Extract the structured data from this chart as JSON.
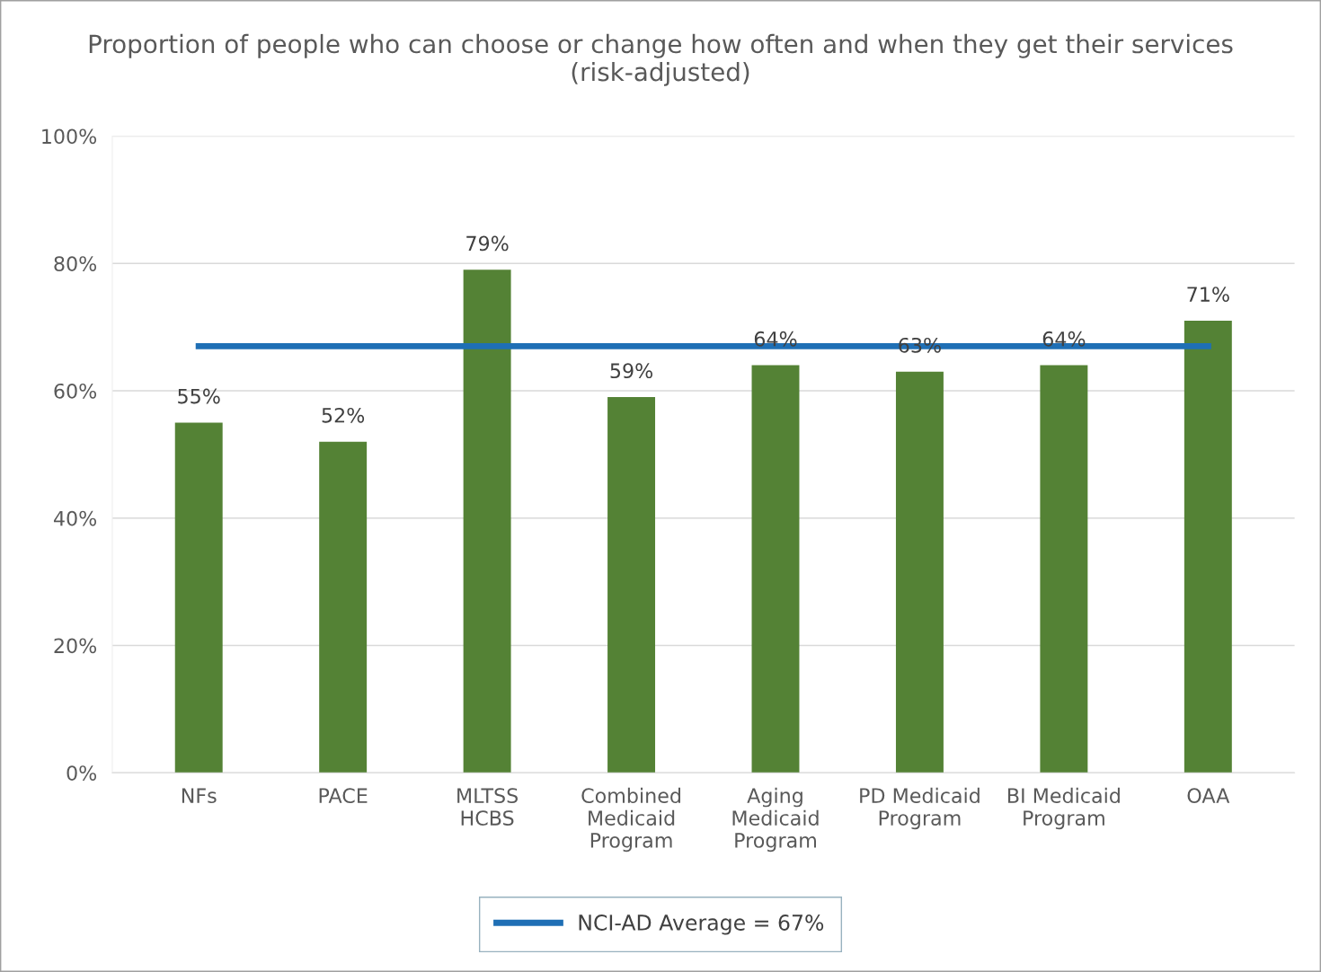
{
  "chart_data": {
    "type": "bar",
    "title": "Proportion of people who can choose or change how often and when they get their services (risk-adjusted)",
    "categories": [
      "NFs",
      "PACE",
      "MLTSS\nHCBS",
      "Combined\nMedicaid\nProgram",
      "Aging\nMedicaid\nProgram",
      "PD Medicaid\nProgram",
      "BI Medicaid\nProgram",
      "OAA"
    ],
    "series": [
      {
        "color": "#548235",
        "values": [
          55,
          52,
          79,
          59,
          64,
          63,
          64,
          71
        ],
        "value_labels": [
          "55%",
          "52%",
          "79%",
          "59%",
          "64%",
          "63%",
          "64%",
          "71%"
        ]
      },
      {
        "type": "line",
        "name": "NCI-AD Average = 67%",
        "color": "#1f6fb5",
        "values": [
          67,
          67,
          67,
          67,
          67,
          67,
          67,
          67
        ]
      }
    ],
    "ylim": [
      0,
      100
    ],
    "yticks": [
      {
        "value": 0,
        "label": "0%"
      },
      {
        "value": 20,
        "label": "20%"
      },
      {
        "value": 40,
        "label": "40%"
      },
      {
        "value": 60,
        "label": "60%"
      },
      {
        "value": 80,
        "label": "80%"
      },
      {
        "value": 100,
        "label": "100%"
      }
    ],
    "grid": "y",
    "legend": "bottom",
    "marker": "none",
    "line_style": "solid"
  }
}
